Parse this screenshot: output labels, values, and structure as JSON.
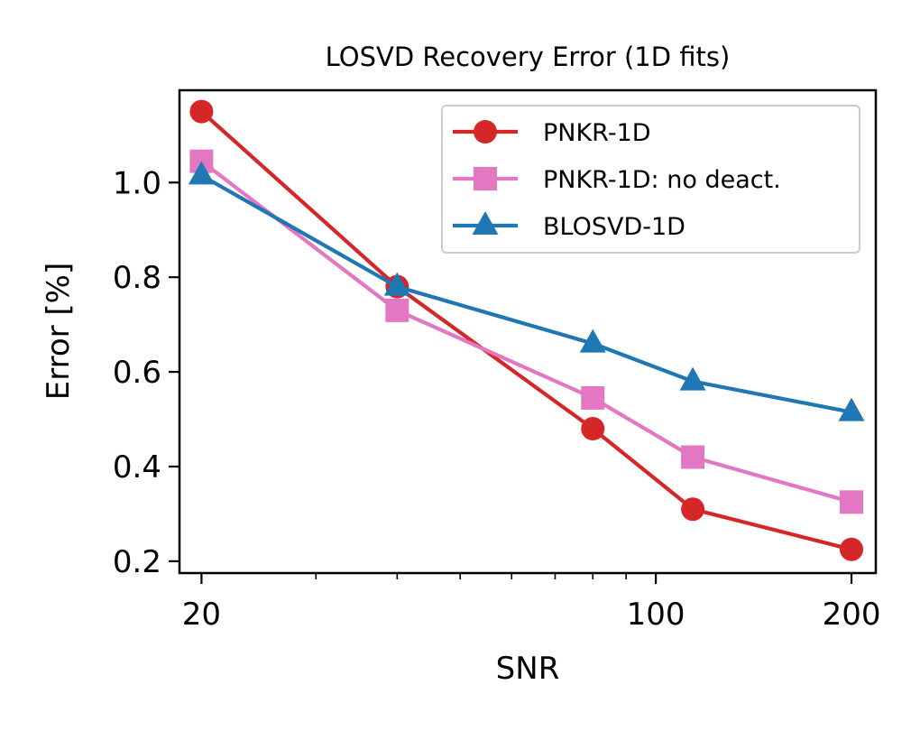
{
  "chart_data": {
    "type": "line",
    "title": "LOSVD Recovery Error (1D fits)",
    "xlabel": "SNR",
    "ylabel": "Error [%]",
    "xscale": "log",
    "xlim": [
      18.5,
      218
    ],
    "ylim": [
      0.175,
      1.195
    ],
    "x": [
      20,
      40,
      80,
      114,
      200
    ],
    "x_ticks": [
      {
        "value": 20,
        "label": "20"
      },
      {
        "value": 100,
        "label": "100"
      },
      {
        "value": 200,
        "label": "200"
      }
    ],
    "x_minor_ticks": [
      30,
      40,
      50,
      60,
      70,
      80,
      90
    ],
    "y_ticks": [
      {
        "value": 0.2,
        "label": "0.2"
      },
      {
        "value": 0.4,
        "label": "0.4"
      },
      {
        "value": 0.6,
        "label": "0.6"
      },
      {
        "value": 0.8,
        "label": "0.8"
      },
      {
        "value": 1.0,
        "label": "1.0"
      }
    ],
    "legend_position": "top-right",
    "series": [
      {
        "name": "PNKR-1D",
        "color": "#d62728",
        "marker": "circle",
        "values": [
          1.15,
          0.78,
          0.48,
          0.31,
          0.225
        ]
      },
      {
        "name": "PNKR-1D: no deact.",
        "color": "#e377c2",
        "marker": "square",
        "values": [
          1.045,
          0.73,
          0.545,
          0.42,
          0.325
        ]
      },
      {
        "name": "BLOSVD-1D",
        "color": "#1f77b4",
        "marker": "triangle",
        "values": [
          1.015,
          0.78,
          0.66,
          0.58,
          0.515
        ]
      }
    ]
  }
}
